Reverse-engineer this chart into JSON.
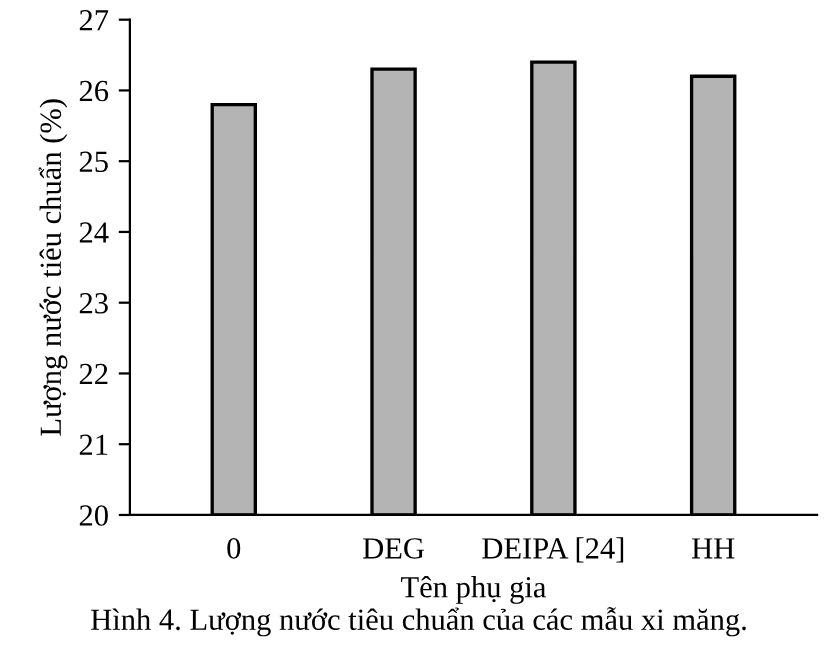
{
  "chart_data": {
    "type": "bar",
    "xlabel": "Tên phụ gia",
    "ylabel": "Lượng nước tiêu chuẩn (%)",
    "categories": [
      "0",
      "DEG",
      "DEIPA [24]",
      "HH"
    ],
    "values": [
      25.8,
      26.3,
      26.4,
      26.2
    ],
    "color": "#b4b4b4",
    "ylim": [
      20,
      27
    ],
    "yticks": [
      20,
      21,
      22,
      23,
      24,
      25,
      26,
      27
    ],
    "grid": false,
    "legend": false,
    "annotations": [
      "Hình 4. Lượng nước tiêu chuẩn của các mẫu xi măng."
    ]
  }
}
